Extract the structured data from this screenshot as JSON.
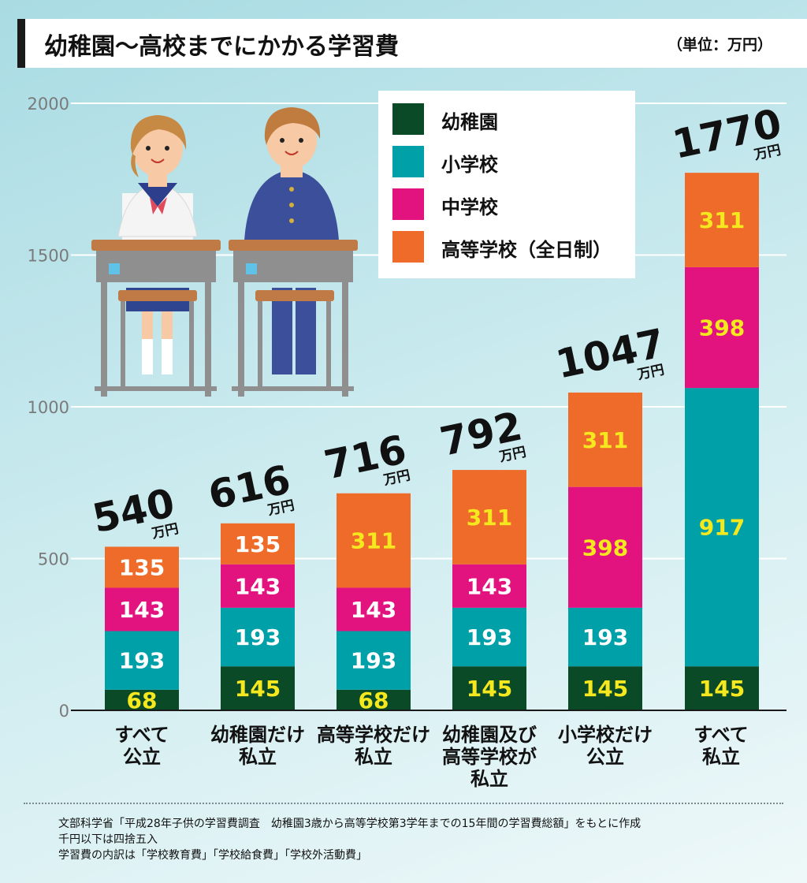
{
  "header": {
    "title": "幼稚園〜高校までにかかる学習費",
    "unit": "（単位：万円）"
  },
  "legend": [
    {
      "label": "幼稚園",
      "color": "#0b4a26"
    },
    {
      "label": "小学校",
      "color": "#00a0a8"
    },
    {
      "label": "中学校",
      "color": "#e2127f"
    },
    {
      "label": "高等学校（全日制）",
      "color": "#ef6b2a"
    }
  ],
  "chart_data": {
    "type": "bar",
    "stacked": true,
    "categories": [
      "すべて\n公立",
      "幼稚園だけ\n私立",
      "高等学校だけ\n私立",
      "幼稚園及び\n高等学校が\n私立",
      "小学校だけ\n公立",
      "すべて\n私立"
    ],
    "series": [
      {
        "name": "幼稚園",
        "values": [
          68,
          145,
          68,
          145,
          145,
          145
        ]
      },
      {
        "name": "小学校",
        "values": [
          193,
          193,
          193,
          193,
          193,
          917
        ]
      },
      {
        "name": "中学校",
        "values": [
          143,
          143,
          143,
          143,
          398,
          398
        ]
      },
      {
        "name": "高等学校（全日制）",
        "values": [
          135,
          135,
          311,
          311,
          311,
          311
        ]
      }
    ],
    "totals": [
      "540",
      "616",
      "716",
      "792",
      "1047",
      "1770"
    ],
    "total_unit": "万円",
    "yticks": [
      "0",
      "500",
      "1000",
      "1500",
      "2000"
    ],
    "ylim": [
      0,
      2000
    ],
    "grid": true,
    "legend_position": "top-right"
  },
  "notes": [
    "文部科学省「平成28年子供の学習費調査　幼稚園3歳から高等学校第3学年までの15年間の学習費総額」をもとに作成",
    "千円以下は四捨五入",
    "学習費の内訳は「学校教育費」「学校給食費」「学校外活動費」"
  ]
}
